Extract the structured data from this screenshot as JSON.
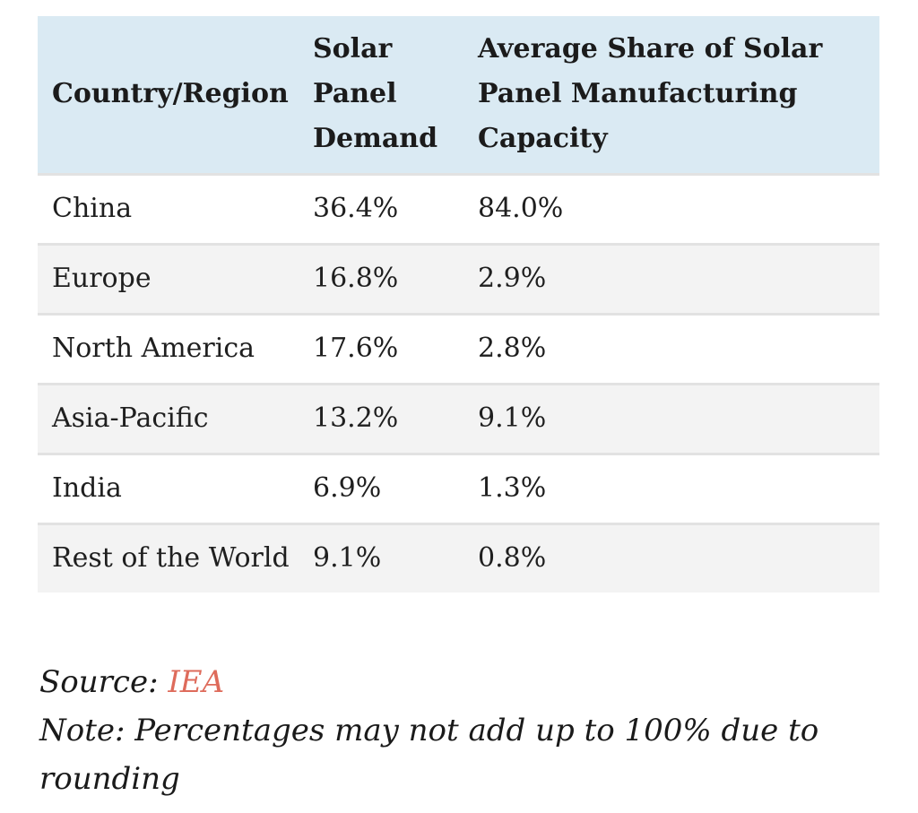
{
  "table": {
    "headers": [
      "Country/Region",
      "Solar Panel Demand",
      "Average Share of Solar Panel Manufacturing Capacity"
    ],
    "rows": [
      [
        "China",
        "36.4%",
        "84.0%"
      ],
      [
        "Europe",
        "16.8%",
        "2.9%"
      ],
      [
        "North America",
        "17.6%",
        "2.8%"
      ],
      [
        "Asia-Pacific",
        "13.2%",
        "9.1%"
      ],
      [
        "India",
        "6.9%",
        "1.3%"
      ],
      [
        "Rest of the World",
        "9.1%",
        "0.8%"
      ]
    ]
  },
  "source": {
    "label": "Source: ",
    "link_text": "IEA"
  },
  "note": "Note: Percentages may not add up to 100% due to rounding",
  "colors": {
    "header_bg": "#daeaf3",
    "alt_row_bg": "#f3f3f3",
    "link": "#de6b5b"
  }
}
